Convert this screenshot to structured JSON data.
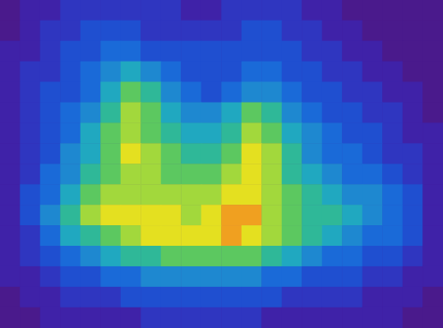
{
  "chart_data": {
    "type": "heatmap",
    "tick_labels": false,
    "zlim": [
      0,
      12
    ],
    "z": [
      [
        0,
        1,
        1,
        2,
        2,
        2,
        2,
        2,
        2,
        1,
        1,
        2,
        2,
        2,
        2,
        1,
        1,
        0,
        0,
        0,
        0,
        0
      ],
      [
        0,
        1,
        2,
        2,
        3,
        3,
        3,
        2,
        2,
        2,
        2,
        2,
        3,
        3,
        2,
        2,
        1,
        1,
        0,
        0,
        0,
        0
      ],
      [
        1,
        1,
        2,
        3,
        3,
        4,
        4,
        3,
        3,
        3,
        3,
        3,
        3,
        3,
        3,
        2,
        2,
        1,
        1,
        0,
        0,
        0
      ],
      [
        1,
        2,
        2,
        3,
        4,
        5,
        6,
        5,
        4,
        3,
        3,
        3,
        4,
        4,
        3,
        3,
        2,
        2,
        1,
        1,
        0,
        0
      ],
      [
        1,
        2,
        3,
        3,
        4,
        6,
        8,
        7,
        5,
        4,
        3,
        4,
        5,
        5,
        4,
        3,
        3,
        2,
        2,
        1,
        1,
        0
      ],
      [
        1,
        2,
        3,
        4,
        5,
        7,
        9,
        8,
        6,
        5,
        5,
        6,
        8,
        7,
        5,
        4,
        3,
        3,
        2,
        2,
        1,
        0
      ],
      [
        1,
        2,
        3,
        4,
        6,
        8,
        9,
        8,
        7,
        6,
        6,
        7,
        9,
        8,
        6,
        5,
        4,
        3,
        3,
        2,
        1,
        1
      ],
      [
        1,
        2,
        3,
        5,
        6,
        8,
        10,
        9,
        8,
        7,
        7,
        8,
        10,
        9,
        7,
        5,
        4,
        4,
        3,
        2,
        2,
        1
      ],
      [
        1,
        2,
        4,
        5,
        7,
        8,
        9,
        9,
        8,
        8,
        8,
        9,
        10,
        9,
        7,
        6,
        5,
        4,
        4,
        3,
        2,
        1
      ],
      [
        1,
        3,
        4,
        6,
        8,
        9,
        9,
        9,
        9,
        9,
        9,
        10,
        10,
        9,
        8,
        7,
        6,
        5,
        5,
        4,
        3,
        1
      ],
      [
        1,
        3,
        5,
        7,
        9,
        10,
        10,
        10,
        10,
        9,
        10,
        11,
        11,
        9,
        8,
        7,
        7,
        6,
        5,
        4,
        3,
        1
      ],
      [
        1,
        2,
        4,
        6,
        7,
        8,
        9,
        10,
        10,
        10,
        10,
        11,
        10,
        9,
        8,
        7,
        6,
        5,
        4,
        4,
        3,
        1
      ],
      [
        1,
        2,
        3,
        4,
        5,
        6,
        7,
        7,
        8,
        8,
        8,
        8,
        8,
        7,
        6,
        5,
        4,
        4,
        3,
        3,
        2,
        1
      ],
      [
        1,
        1,
        2,
        3,
        3,
        4,
        4,
        5,
        5,
        5,
        5,
        5,
        5,
        4,
        4,
        3,
        3,
        3,
        2,
        2,
        1,
        1
      ],
      [
        0,
        1,
        1,
        2,
        2,
        2,
        3,
        3,
        3,
        3,
        3,
        3,
        3,
        3,
        2,
        2,
        2,
        2,
        1,
        1,
        1,
        0
      ],
      [
        0,
        0,
        1,
        1,
        1,
        1,
        1,
        2,
        2,
        2,
        2,
        2,
        2,
        1,
        1,
        1,
        1,
        1,
        1,
        1,
        0,
        0
      ]
    ]
  }
}
